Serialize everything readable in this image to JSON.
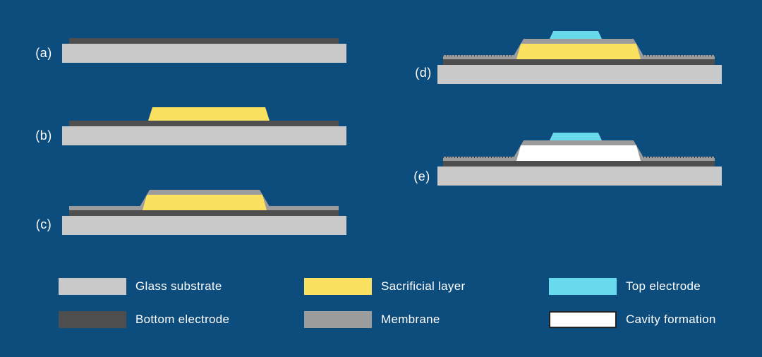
{
  "colors": {
    "bg": "#0D4D7E",
    "substrate": "#C9C9C9",
    "bottom-electrode": "#4E4E4E",
    "membrane": "#9C9C9C",
    "sacrificial": "#FAE15F",
    "top-electrode": "#69D9EE",
    "cavity": "#FFFFFF",
    "cavity-border": "#222222",
    "text": "#FFFFFF"
  },
  "steps": [
    {
      "label": "(a)",
      "layers": [
        "glass-substrate",
        "bottom-electrode"
      ]
    },
    {
      "label": "(b)",
      "layers": [
        "glass-substrate",
        "bottom-electrode",
        "sacrificial-layer"
      ]
    },
    {
      "label": "(c)",
      "layers": [
        "glass-substrate",
        "bottom-electrode",
        "sacrificial-layer",
        "membrane"
      ]
    },
    {
      "label": "(d)",
      "layers": [
        "glass-substrate",
        "bottom-electrode",
        "sacrificial-layer",
        "membrane",
        "top-electrode"
      ]
    },
    {
      "label": "(e)",
      "layers": [
        "glass-substrate",
        "bottom-electrode",
        "membrane",
        "top-electrode",
        "cavity-formation"
      ]
    }
  ],
  "legend": {
    "items": [
      {
        "label": "Glass substrate",
        "color": "#C9C9C9"
      },
      {
        "label": "Bottom electrode",
        "color": "#4E4E4E"
      },
      {
        "label": "Sacrificial layer",
        "color": "#FAE15F"
      },
      {
        "label": "Membrane",
        "color": "#9C9C9C"
      },
      {
        "label": "Top electrode",
        "color": "#69D9EE"
      },
      {
        "label": "Cavity formation",
        "color": "#FFFFFF"
      }
    ]
  }
}
